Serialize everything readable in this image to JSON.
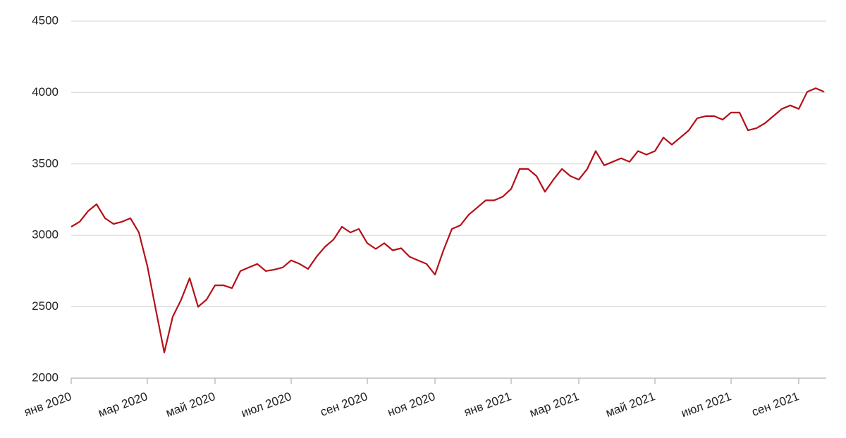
{
  "chart_data": {
    "type": "line",
    "categories": [
      "янв 2020",
      null,
      null,
      null,
      null,
      null,
      null,
      null,
      null,
      "мар 2020",
      null,
      null,
      null,
      null,
      null,
      null,
      null,
      "май 2020",
      null,
      null,
      null,
      null,
      null,
      null,
      null,
      null,
      "июл 2020",
      null,
      null,
      null,
      null,
      null,
      null,
      null,
      null,
      "сен 2020",
      null,
      null,
      null,
      null,
      null,
      null,
      null,
      "ноя 2020",
      null,
      null,
      null,
      null,
      null,
      null,
      null,
      null,
      "янв 2021",
      null,
      null,
      null,
      null,
      null,
      null,
      null,
      "мар 2021",
      null,
      null,
      null,
      null,
      null,
      null,
      null,
      null,
      "май 2021",
      null,
      null,
      null,
      null,
      null,
      null,
      null,
      null,
      "июл 2021",
      null,
      null,
      null,
      null,
      null,
      null,
      null,
      "сен 2021",
      null,
      null,
      null
    ],
    "values": [
      3060,
      3095,
      3170,
      3218,
      3120,
      3080,
      3095,
      3120,
      3020,
      2785,
      2480,
      2180,
      2430,
      2550,
      2700,
      2500,
      2550,
      2650,
      2650,
      2630,
      2750,
      2775,
      2800,
      2750,
      2760,
      2775,
      2825,
      2800,
      2765,
      2850,
      2920,
      2970,
      3060,
      3020,
      3045,
      2945,
      2905,
      2945,
      2895,
      2910,
      2850,
      2825,
      2800,
      2725,
      2895,
      3045,
      3070,
      3145,
      3195,
      3245,
      3245,
      3270,
      3325,
      3465,
      3465,
      3415,
      3305,
      3390,
      3465,
      3415,
      3390,
      3465,
      3590,
      3490,
      3515,
      3540,
      3515,
      3590,
      3565,
      3590,
      3685,
      3635,
      3685,
      3735,
      3820,
      3835,
      3835,
      3810,
      3860,
      3860,
      3735,
      3750,
      3785,
      3835,
      3885,
      3910,
      3885,
      4005,
      4030,
      4005
    ],
    "color": "#b50f17",
    "ylim": [
      2000,
      4500
    ],
    "yticks": [
      2000,
      2500,
      3000,
      3500,
      4000,
      4500
    ],
    "grid": true
  }
}
